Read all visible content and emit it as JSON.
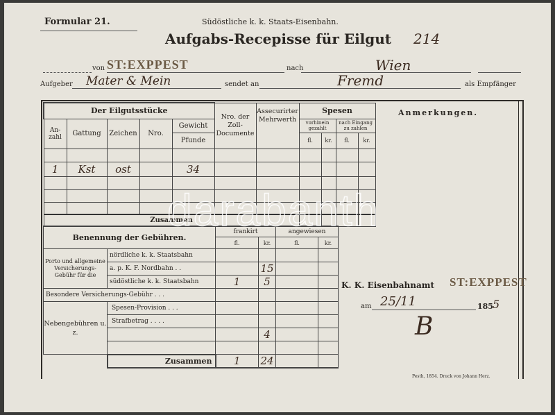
{
  "header": {
    "form_number": "Formular 21.",
    "railway": "Südöstliche k. k. Staats-Eisenbahn.",
    "title": "Aufgabs-Recepisse für Eilgut",
    "title_number_hand": "214"
  },
  "route": {
    "from_label": "von",
    "from_stamp": "ST:EXPPEST",
    "to_label": "nach",
    "to_hand": "Wien",
    "sender_label": "Aufgeber",
    "sender_hand": "Mater & Mein",
    "sends_to_label": "sendet an",
    "recipient_hand": "Fremd",
    "recipient_label": "als Empfänger"
  },
  "goods_table": {
    "group_header": "Der Eilgutsstücke",
    "columns": [
      "An-zahl",
      "Gattung",
      "Zeichen",
      "Nro.",
      "Gewicht",
      "Pfunde"
    ],
    "customs_header": "Nro. der Zoll-Documente",
    "insured_header": "Assecurirter Mehrwerth",
    "costs_header": "Spesen",
    "prepaid_header": "vorhinein gezahlt",
    "on_arrival_header": "nach Eingang zu zahlen",
    "fl": "fl.",
    "kr": "kr.",
    "row": {
      "anzahl": "1",
      "gattung": "Kst",
      "zeichen": "ost",
      "gewicht": "34"
    },
    "total_label": "Zusammen"
  },
  "fees_table": {
    "header": "Benennung der Gebühren.",
    "frankirt": "frankirt",
    "angewiesen": "angewiesen",
    "fl": "fl.",
    "kr": "kr.",
    "group1_label": "Porto und allgemeine Versicherungs-Gebühr für die",
    "rows": [
      {
        "label": "nördliche k. k. Staatsbahn",
        "fl": "",
        "kr": ""
      },
      {
        "label": "a. p. K. F. Nordbahn . .",
        "fl": "",
        "kr": "15"
      },
      {
        "label": "südöstliche k. k. Staatsbahn",
        "fl": "1",
        "kr": "5"
      },
      {
        "label": "Besondere Versicherungs-Gebühr . . .",
        "fl": "",
        "kr": ""
      },
      {
        "label": "Spesen-Provision . . .",
        "fl": "",
        "kr": ""
      },
      {
        "label": "Strafbetrag . . . .",
        "fl": "",
        "kr": ""
      },
      {
        "label": "",
        "fl": "",
        "kr": "4"
      },
      {
        "label": "",
        "fl": "",
        "kr": ""
      }
    ],
    "group2_label": "Nebengebühren u. z.",
    "total_label": "Zusammen",
    "total_fl": "1",
    "total_kr": "24"
  },
  "remarks": {
    "header": "Anmerkungen.",
    "office_label": "K. K. Eisenbahnamt",
    "office_stamp": "ST:EXPPEST",
    "date_prefix": "am",
    "date_hand": "25/11",
    "year_prefix": "185",
    "year_hand": "5",
    "signature_hand": "B"
  },
  "printer": "Pesth, 1854. Druck von Johann Herz.",
  "watermark": "darabanth"
}
